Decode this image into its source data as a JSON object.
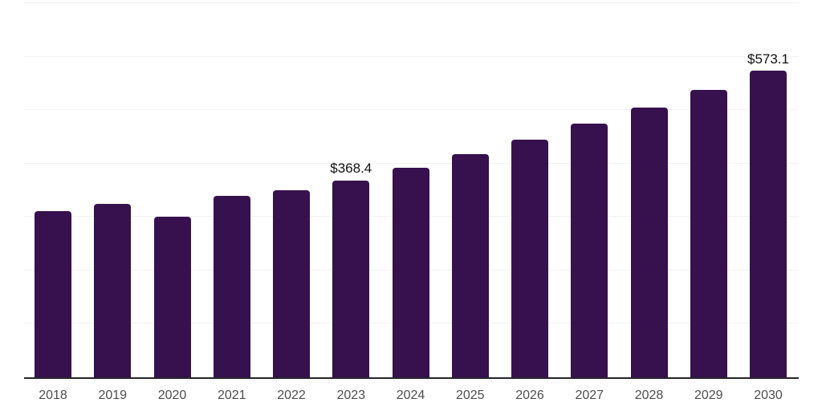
{
  "chart_data": {
    "type": "bar",
    "title": "",
    "xlabel": "",
    "ylabel": "",
    "categories": [
      "2018",
      "2019",
      "2020",
      "2021",
      "2022",
      "2023",
      "2024",
      "2025",
      "2026",
      "2027",
      "2028",
      "2029",
      "2030"
    ],
    "values": [
      311,
      324,
      300,
      340,
      350,
      368.4,
      392,
      418,
      445,
      474,
      505,
      538,
      573.1
    ],
    "data_labels": [
      "",
      "",
      "",
      "",
      "",
      "$368.4",
      "",
      "",
      "",
      "",
      "",
      "",
      "$573.1"
    ],
    "ylim": [
      0,
      700
    ],
    "gridline_step": 100,
    "grid": true,
    "legend": false,
    "colors": {
      "bar": "#36114D",
      "axis_line": "#26262B",
      "gridline": "#F2F2F2",
      "tick_label": "#4D4D4D",
      "data_label": "#111111",
      "background": "#FFFFFF"
    }
  }
}
